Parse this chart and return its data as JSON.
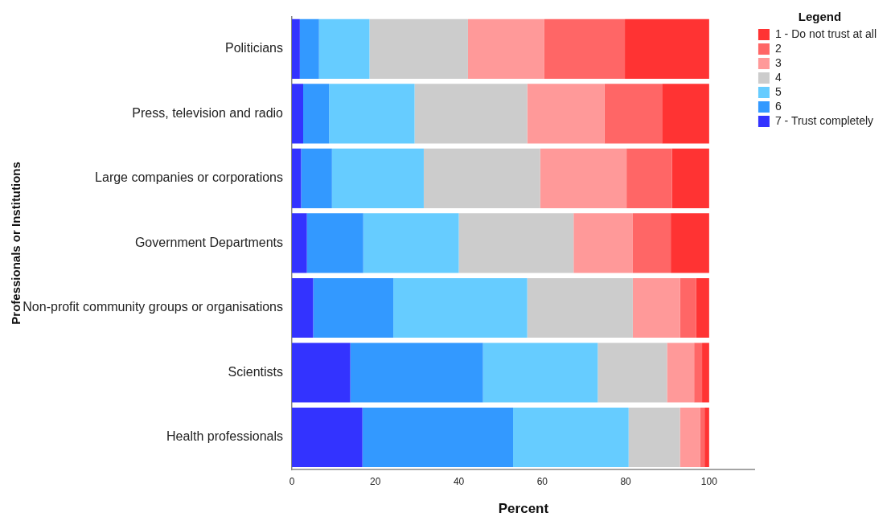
{
  "chart_data": {
    "type": "bar",
    "orientation": "horizontal",
    "stacked": true,
    "xlabel": "Percent",
    "ylabel": "Professionals or Institutions",
    "legend": "top right",
    "legend_title": "Legend",
    "categories": [
      "Politicians",
      "Press, television and radio",
      "Large companies or corporations",
      "Government Departments",
      "Non-profit community groups or organisations",
      "Scientists",
      "Health professionals"
    ],
    "xlim": [
      0,
      111
    ],
    "xticks": [
      0,
      20,
      40,
      60,
      80,
      100
    ],
    "series": [
      {
        "name": "7 - Trust completely",
        "color": "#3333ff",
        "values": [
          1.9,
          2.7,
          2.2,
          3.6,
          5.1,
          14.0,
          16.9
        ]
      },
      {
        "name": "6",
        "color": "#3399ff",
        "values": [
          4.6,
          6.2,
          7.4,
          13.5,
          19.2,
          31.8,
          36.1
        ]
      },
      {
        "name": "5",
        "color": "#66ccff",
        "values": [
          12.1,
          20.5,
          22.0,
          22.9,
          32.1,
          27.5,
          27.7
        ]
      },
      {
        "name": "4",
        "color": "#cccccc",
        "values": [
          23.6,
          27.0,
          27.9,
          27.5,
          25.3,
          16.6,
          12.3
        ]
      },
      {
        "name": "3",
        "color": "#ff9999",
        "values": [
          18.3,
          18.5,
          20.7,
          14.2,
          11.3,
          6.5,
          4.8
        ]
      },
      {
        "name": "2",
        "color": "#ff6666",
        "values": [
          19.3,
          13.8,
          10.9,
          9.1,
          3.9,
          1.9,
          1.1
        ]
      },
      {
        "name": "1 - Do not trust at all",
        "color": "#ff3333",
        "values": [
          20.2,
          11.3,
          8.9,
          9.2,
          3.1,
          1.7,
          1.1
        ]
      }
    ]
  }
}
